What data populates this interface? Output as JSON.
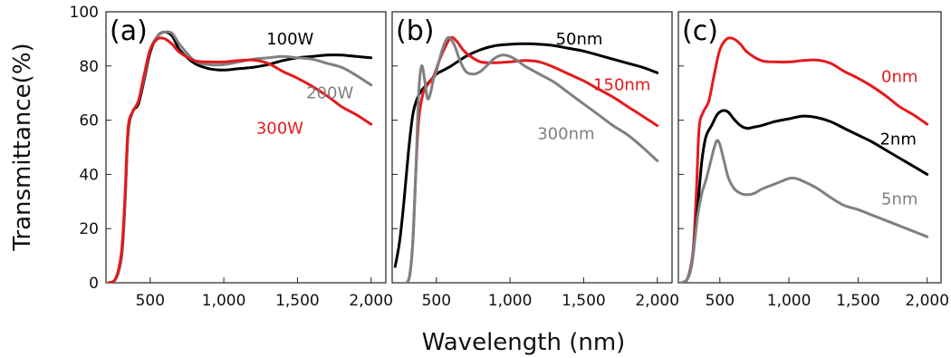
{
  "figure": {
    "ylabel": "Transmittance(%)",
    "xlabel": "Wavelength (nm)"
  },
  "chart_data": [
    {
      "type": "line",
      "panel_label": "(a)",
      "xlim": [
        200,
        2100
      ],
      "ylim": [
        0,
        100
      ],
      "x_ticks": [
        500,
        1000,
        1500,
        2000
      ],
      "x_tick_labels": [
        "500",
        "1,000",
        "1,500",
        "2,000"
      ],
      "y_ticks": [
        0,
        20,
        40,
        60,
        80,
        100
      ],
      "y_tick_labels": [
        "0",
        "20",
        "40",
        "60",
        "80",
        "100"
      ],
      "series": [
        {
          "name": "100W",
          "color": "#000000",
          "x": [
            220,
            260,
            290,
            310,
            330,
            350,
            380,
            420,
            460,
            500,
            550,
            600,
            650,
            700,
            800,
            900,
            1000,
            1100,
            1200,
            1300,
            1400,
            1500,
            1600,
            1700,
            1800,
            1900,
            2000
          ],
          "y": [
            0,
            1,
            5,
            12,
            30,
            55,
            63,
            66,
            75,
            85,
            91,
            92.5,
            91,
            86,
            81,
            79,
            78.5,
            79,
            79.5,
            80.5,
            82,
            83,
            83.5,
            84,
            84,
            83.5,
            83
          ]
        },
        {
          "name": "200W",
          "color": "#808080",
          "x": [
            220,
            260,
            290,
            310,
            330,
            350,
            380,
            420,
            460,
            500,
            550,
            600,
            650,
            700,
            800,
            900,
            1000,
            1100,
            1200,
            1300,
            1400,
            1500,
            1600,
            1700,
            1800,
            1900,
            2000
          ],
          "y": [
            0,
            1,
            5,
            13,
            31,
            56,
            63,
            67,
            76,
            86,
            91,
            92.5,
            92,
            88,
            82,
            80.5,
            80.5,
            81.5,
            82.5,
            83,
            83.5,
            83,
            82.5,
            81,
            79.5,
            76.5,
            73
          ]
        },
        {
          "name": "300W",
          "color": "#e41a1c",
          "x": [
            220,
            260,
            290,
            310,
            330,
            350,
            380,
            420,
            460,
            500,
            550,
            600,
            650,
            700,
            800,
            900,
            1000,
            1100,
            1200,
            1300,
            1400,
            1500,
            1600,
            1700,
            1800,
            1900,
            2000
          ],
          "y": [
            0,
            1,
            6,
            14,
            33,
            57,
            63,
            67,
            77,
            86,
            90,
            90,
            88,
            85,
            82,
            81.5,
            81.5,
            82,
            82.2,
            81,
            78,
            75.5,
            72.5,
            69,
            65,
            62,
            58.5
          ]
        }
      ],
      "annotations": [
        {
          "text": "100W",
          "x": 1450,
          "y": 88,
          "color": "#000000"
        },
        {
          "text": "200W",
          "x": 1720,
          "y": 68,
          "color": "#808080"
        },
        {
          "text": "300W",
          "x": 1380,
          "y": 55,
          "color": "#e41a1c"
        }
      ]
    },
    {
      "type": "line",
      "panel_label": "(b)",
      "xlim": [
        200,
        2100
      ],
      "ylim": [
        0,
        100
      ],
      "x_ticks": [
        500,
        1000,
        1500,
        2000
      ],
      "x_tick_labels": [
        "500",
        "1,000",
        "1,500",
        "2,000"
      ],
      "y_ticks": [
        0,
        20,
        40,
        60,
        80,
        100
      ],
      "y_tick_labels": [
        "",
        "",
        "",
        "",
        "",
        ""
      ],
      "series": [
        {
          "name": "50nm",
          "color": "#000000",
          "x": [
            220,
            250,
            280,
            310,
            340,
            370,
            400,
            450,
            500,
            550,
            600,
            700,
            800,
            900,
            1000,
            1100,
            1200,
            1300,
            1400,
            1500,
            1600,
            1700,
            1800,
            1900,
            2000
          ],
          "y": [
            6,
            15,
            30,
            48,
            62,
            68,
            71,
            74,
            77,
            78.5,
            80,
            83.5,
            86,
            87.5,
            88,
            88.2,
            88,
            87.5,
            86.5,
            85.5,
            84,
            82.5,
            81,
            79.5,
            77.5
          ]
        },
        {
          "name": "150nm",
          "color": "#e41a1c",
          "x": [
            300,
            320,
            340,
            360,
            380,
            410,
            440,
            480,
            520,
            560,
            600,
            640,
            680,
            720,
            800,
            900,
            1000,
            1100,
            1200,
            1300,
            1400,
            1500,
            1600,
            1700,
            1800,
            1900,
            2000
          ],
          "y": [
            0,
            3,
            15,
            40,
            60,
            70,
            73,
            76,
            82,
            87,
            90.5,
            89,
            86,
            84,
            81.5,
            81.2,
            81.5,
            82,
            81.5,
            79.5,
            77,
            74.5,
            71.5,
            68.5,
            65,
            61.5,
            58
          ]
        },
        {
          "name": "300nm",
          "color": "#808080",
          "x": [
            300,
            320,
            340,
            360,
            380,
            400,
            420,
            440,
            460,
            480,
            500,
            540,
            580,
            620,
            660,
            700,
            750,
            800,
            850,
            900,
            950,
            1000,
            1050,
            1100,
            1200,
            1300,
            1400,
            1500,
            1600,
            1700,
            1800,
            1900,
            2000
          ],
          "y": [
            0,
            3,
            15,
            40,
            70,
            80,
            75,
            68,
            70,
            75,
            78,
            86,
            90.5,
            88,
            82,
            78,
            77,
            78,
            80.5,
            83,
            84,
            83.5,
            82,
            80,
            77,
            74,
            70,
            66,
            62,
            58,
            54.5,
            50,
            45
          ]
        }
      ],
      "annotations": [
        {
          "text": "50nm",
          "x": 1470,
          "y": 88,
          "color": "#000000"
        },
        {
          "text": "150nm",
          "x": 1760,
          "y": 71,
          "color": "#e41a1c"
        },
        {
          "text": "300nm",
          "x": 1380,
          "y": 53,
          "color": "#808080"
        }
      ]
    },
    {
      "type": "line",
      "panel_label": "(c)",
      "xlim": [
        200,
        2100
      ],
      "ylim": [
        0,
        100
      ],
      "x_ticks": [
        500,
        1000,
        1500,
        2000
      ],
      "x_tick_labels": [
        "500",
        "1,000",
        "1,500",
        "2,000"
      ],
      "y_ticks": [
        0,
        20,
        40,
        60,
        80,
        100
      ],
      "y_tick_labels": [
        "",
        "",
        "",
        "",
        "",
        ""
      ],
      "series": [
        {
          "name": "0nm",
          "color": "#e41a1c",
          "x": [
            220,
            260,
            290,
            310,
            330,
            350,
            380,
            420,
            460,
            500,
            550,
            600,
            650,
            700,
            800,
            900,
            1000,
            1100,
            1200,
            1300,
            1400,
            1500,
            1600,
            1700,
            1800,
            1900,
            2000
          ],
          "y": [
            0,
            1,
            6,
            14,
            33,
            57,
            63,
            67,
            77,
            86,
            90,
            90,
            88,
            85,
            82,
            81.5,
            81.5,
            82,
            82.2,
            81,
            78,
            75.5,
            72.5,
            69,
            65,
            62,
            58.5
          ]
        },
        {
          "name": "2nm",
          "color": "#000000",
          "x": [
            220,
            260,
            290,
            310,
            340,
            370,
            400,
            440,
            480,
            520,
            560,
            600,
            650,
            700,
            750,
            800,
            900,
            1000,
            1100,
            1200,
            1300,
            1400,
            1500,
            1600,
            1700,
            1800,
            1900,
            2000
          ],
          "y": [
            0,
            1,
            5,
            12,
            28,
            45,
            54,
            58,
            62,
            63.5,
            63,
            60.5,
            58,
            57,
            57.5,
            58,
            59.5,
            60.5,
            61.5,
            61,
            59.5,
            57,
            54.5,
            52,
            49,
            46,
            43,
            40
          ]
        },
        {
          "name": "5nm",
          "color": "#808080",
          "x": [
            220,
            260,
            290,
            310,
            340,
            370,
            400,
            430,
            460,
            480,
            500,
            530,
            560,
            600,
            650,
            700,
            750,
            800,
            900,
            1000,
            1050,
            1100,
            1200,
            1300,
            1400,
            1500,
            1600,
            1700,
            1800,
            1900,
            2000
          ],
          "y": [
            0,
            1,
            5,
            12,
            25,
            33,
            38,
            44,
            50,
            52.5,
            51,
            45,
            39,
            35,
            33,
            32.5,
            33,
            34.5,
            36.5,
            38.5,
            38.5,
            37.5,
            35,
            31.5,
            28.5,
            27,
            25,
            23,
            21,
            19,
            17
          ]
        }
      ],
      "annotations": [
        {
          "text": "0nm",
          "x": 1800,
          "y": 74,
          "color": "#e41a1c"
        },
        {
          "text": "2nm",
          "x": 1790,
          "y": 51,
          "color": "#000000"
        },
        {
          "text": "5nm",
          "x": 1800,
          "y": 29,
          "color": "#808080"
        }
      ]
    }
  ]
}
